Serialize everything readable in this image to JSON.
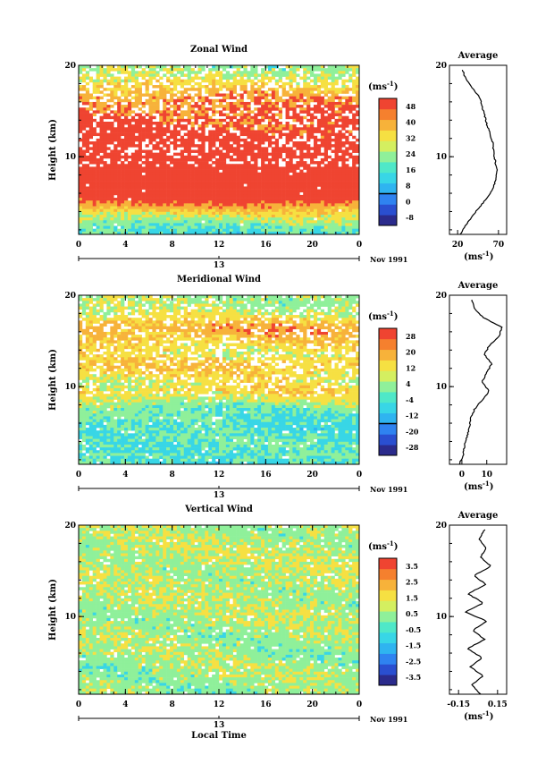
{
  "colors": {
    "palette": [
      "#2b2b8c",
      "#2a4fd0",
      "#2f83f0",
      "#2fb4f0",
      "#38d6e6",
      "#4fe8c8",
      "#8ff09a",
      "#d4ef60",
      "#f6e042",
      "#f7b23a",
      "#f5802e",
      "#ef4431"
    ]
  },
  "chart_data": [
    {
      "type": "heatmap",
      "title": "Zonal Wind",
      "xlabel": "",
      "ylabel": "Height (km)",
      "x_ticks": [
        "0",
        "4",
        "8",
        "12",
        "16",
        "20",
        "0"
      ],
      "date_tick": "13",
      "date_label": "Nov 1991",
      "y_ticks": [
        "20",
        "10"
      ],
      "xlim": [
        0,
        24
      ],
      "ylim": [
        1.5,
        20
      ],
      "colorbar": {
        "unit": "(ms",
        "unit_sup": "-1",
        "unit_close": ")",
        "levels": [
          -8,
          0,
          8,
          16,
          24,
          32,
          40,
          48
        ],
        "labels": [
          "-8",
          "0",
          "8",
          "16",
          "24",
          "32",
          "40",
          "48"
        ],
        "zero_line": true
      },
      "field_profile": [
        {
          "h": 1.5,
          "v": 14
        },
        {
          "h": 2.5,
          "v": 18
        },
        {
          "h": 3.5,
          "v": 26
        },
        {
          "h": 4.5,
          "v": 36
        },
        {
          "h": 5.5,
          "v": 48
        },
        {
          "h": 6.5,
          "v": 55
        },
        {
          "h": 7.5,
          "v": 60
        },
        {
          "h": 8.5,
          "v": 58
        },
        {
          "h": 9.5,
          "v": 52
        },
        {
          "h": 10.5,
          "v": 50
        },
        {
          "h": 11.5,
          "v": 49
        },
        {
          "h": 12.5,
          "v": 46
        },
        {
          "h": 13.5,
          "v": 44
        },
        {
          "h": 14.5,
          "v": 42
        },
        {
          "h": 15.5,
          "v": 40
        },
        {
          "h": 16.5,
          "v": 38
        },
        {
          "h": 17.5,
          "v": 32
        },
        {
          "h": 18.5,
          "v": 26
        },
        {
          "h": 19.5,
          "v": 22
        }
      ],
      "average": {
        "title": "Average",
        "x_ticks": [
          "20",
          "70"
        ],
        "x_tick_values": [
          20,
          70
        ],
        "xlim": [
          10,
          80
        ],
        "unit": "(ms",
        "unit_sup": "-1",
        "unit_close": ")",
        "y_ticks": [
          "20",
          "10"
        ],
        "profile": [
          {
            "h": 1.5,
            "v": 23
          },
          {
            "h": 2.5,
            "v": 30
          },
          {
            "h": 3.5,
            "v": 38
          },
          {
            "h": 4.5,
            "v": 47
          },
          {
            "h": 5.5,
            "v": 56
          },
          {
            "h": 6.5,
            "v": 63
          },
          {
            "h": 7.5,
            "v": 67
          },
          {
            "h": 8.5,
            "v": 68
          },
          {
            "h": 9.5,
            "v": 66
          },
          {
            "h": 10.5,
            "v": 64
          },
          {
            "h": 11.5,
            "v": 63
          },
          {
            "h": 12.5,
            "v": 60
          },
          {
            "h": 13.5,
            "v": 56
          },
          {
            "h": 14.5,
            "v": 53
          },
          {
            "h": 15.5,
            "v": 50
          },
          {
            "h": 16.5,
            "v": 47
          },
          {
            "h": 17.5,
            "v": 38
          },
          {
            "h": 18.5,
            "v": 30
          },
          {
            "h": 19.5,
            "v": 26
          }
        ]
      }
    },
    {
      "type": "heatmap",
      "title": "Meridional Wind",
      "xlabel": "",
      "ylabel": "Height (km)",
      "x_ticks": [
        "0",
        "4",
        "8",
        "12",
        "16",
        "20",
        "0"
      ],
      "date_tick": "13",
      "date_label": "Nov 1991",
      "y_ticks": [
        "20",
        "10"
      ],
      "xlim": [
        0,
        24
      ],
      "ylim": [
        1.5,
        20
      ],
      "colorbar": {
        "unit": "(ms",
        "unit_sup": "-1",
        "unit_close": ")",
        "levels": [
          -28,
          -20,
          -12,
          -4,
          4,
          12,
          20,
          28
        ],
        "labels": [
          "-28",
          "-20",
          "-12",
          "-4",
          "4",
          "12",
          "20",
          "28"
        ],
        "zero_line": true
      },
      "field_profile": [
        {
          "h": 1.5,
          "v": -6
        },
        {
          "h": 2.5,
          "v": -4
        },
        {
          "h": 3.5,
          "v": -5
        },
        {
          "h": 4.5,
          "v": -4
        },
        {
          "h": 5.5,
          "v": -6
        },
        {
          "h": 6.5,
          "v": -4
        },
        {
          "h": 7.5,
          "v": -2
        },
        {
          "h": 8.5,
          "v": 4
        },
        {
          "h": 9.5,
          "v": 10
        },
        {
          "h": 10.5,
          "v": 6
        },
        {
          "h": 11.5,
          "v": 10
        },
        {
          "h": 12.5,
          "v": 12
        },
        {
          "h": 13.5,
          "v": 7
        },
        {
          "h": 14.5,
          "v": 10
        },
        {
          "h": 15.5,
          "v": 14
        },
        {
          "h": 16.5,
          "v": 17
        },
        {
          "h": 17.5,
          "v": 8
        },
        {
          "h": 18.5,
          "v": 3
        },
        {
          "h": 19.5,
          "v": 2
        }
      ],
      "average": {
        "title": "Average",
        "x_ticks": [
          "0",
          "10"
        ],
        "x_tick_values": [
          0,
          10
        ],
        "xlim": [
          -5,
          18
        ],
        "unit": "(ms",
        "unit_sup": "-1",
        "unit_close": ")",
        "y_ticks": [
          "20",
          "10"
        ],
        "profile": [
          {
            "h": 1.5,
            "v": -1
          },
          {
            "h": 2.5,
            "v": 0.5
          },
          {
            "h": 3.5,
            "v": 1
          },
          {
            "h": 4.5,
            "v": 2
          },
          {
            "h": 5.5,
            "v": 3
          },
          {
            "h": 6.5,
            "v": 3.5
          },
          {
            "h": 7.5,
            "v": 5
          },
          {
            "h": 8.5,
            "v": 8
          },
          {
            "h": 9.5,
            "v": 11
          },
          {
            "h": 10.5,
            "v": 8
          },
          {
            "h": 11.5,
            "v": 10
          },
          {
            "h": 12.5,
            "v": 12
          },
          {
            "h": 13.5,
            "v": 9
          },
          {
            "h": 14.5,
            "v": 11
          },
          {
            "h": 15.5,
            "v": 15
          },
          {
            "h": 16.5,
            "v": 16
          },
          {
            "h": 17.5,
            "v": 9
          },
          {
            "h": 18.5,
            "v": 5
          },
          {
            "h": 19.5,
            "v": 4
          }
        ]
      }
    },
    {
      "type": "heatmap",
      "title": "Vertical Wind",
      "xlabel": "Local Time",
      "ylabel": "Height (km)",
      "x_ticks": [
        "0",
        "4",
        "8",
        "12",
        "16",
        "20",
        "0"
      ],
      "date_tick": "13",
      "date_label": "Nov 1991",
      "y_ticks": [
        "20",
        "10"
      ],
      "xlim": [
        0,
        24
      ],
      "ylim": [
        1.5,
        20
      ],
      "colorbar": {
        "unit": "(ms",
        "unit_sup": "-1",
        "unit_close": ")",
        "levels": [
          -3.5,
          -2.5,
          -1.5,
          -0.5,
          0.5,
          1.5,
          2.5,
          3.5
        ],
        "labels": [
          "-3.5",
          "-2.5",
          "-1.5",
          "-0.5",
          "0.5",
          "1.5",
          "2.5",
          "3.5"
        ],
        "zero_line": false
      },
      "field_profile": [
        {
          "h": 1.5,
          "v": 0.2
        },
        {
          "h": 5.5,
          "v": 0.1
        },
        {
          "h": 10.5,
          "v": 0.3
        },
        {
          "h": 15.5,
          "v": 0.4
        },
        {
          "h": 19.5,
          "v": 0.3
        }
      ],
      "average": {
        "title": "Average",
        "x_ticks": [
          "-0.15",
          "0.15"
        ],
        "x_tick_values": [
          -0.15,
          0.15
        ],
        "xlim": [
          -0.22,
          0.22
        ],
        "unit": "(ms",
        "unit_sup": "-1",
        "unit_close": ")",
        "y_ticks": [
          "20",
          "10"
        ],
        "profile": [
          {
            "h": 1.5,
            "v": 0.02
          },
          {
            "h": 2.5,
            "v": -0.05
          },
          {
            "h": 3.5,
            "v": 0.04
          },
          {
            "h": 4.5,
            "v": -0.06
          },
          {
            "h": 5.5,
            "v": 0.03
          },
          {
            "h": 6.5,
            "v": -0.08
          },
          {
            "h": 7.5,
            "v": 0.05
          },
          {
            "h": 8.5,
            "v": -0.04
          },
          {
            "h": 9.5,
            "v": 0.07
          },
          {
            "h": 10.5,
            "v": -0.1
          },
          {
            "h": 11.5,
            "v": 0.04
          },
          {
            "h": 12.5,
            "v": -0.08
          },
          {
            "h": 13.5,
            "v": 0.06
          },
          {
            "h": 14.5,
            "v": -0.03
          },
          {
            "h": 15.5,
            "v": 0.1
          },
          {
            "h": 16.5,
            "v": 0.02
          },
          {
            "h": 17.5,
            "v": 0.06
          },
          {
            "h": 18.5,
            "v": 0.01
          },
          {
            "h": 19.5,
            "v": 0.05
          }
        ]
      }
    }
  ]
}
